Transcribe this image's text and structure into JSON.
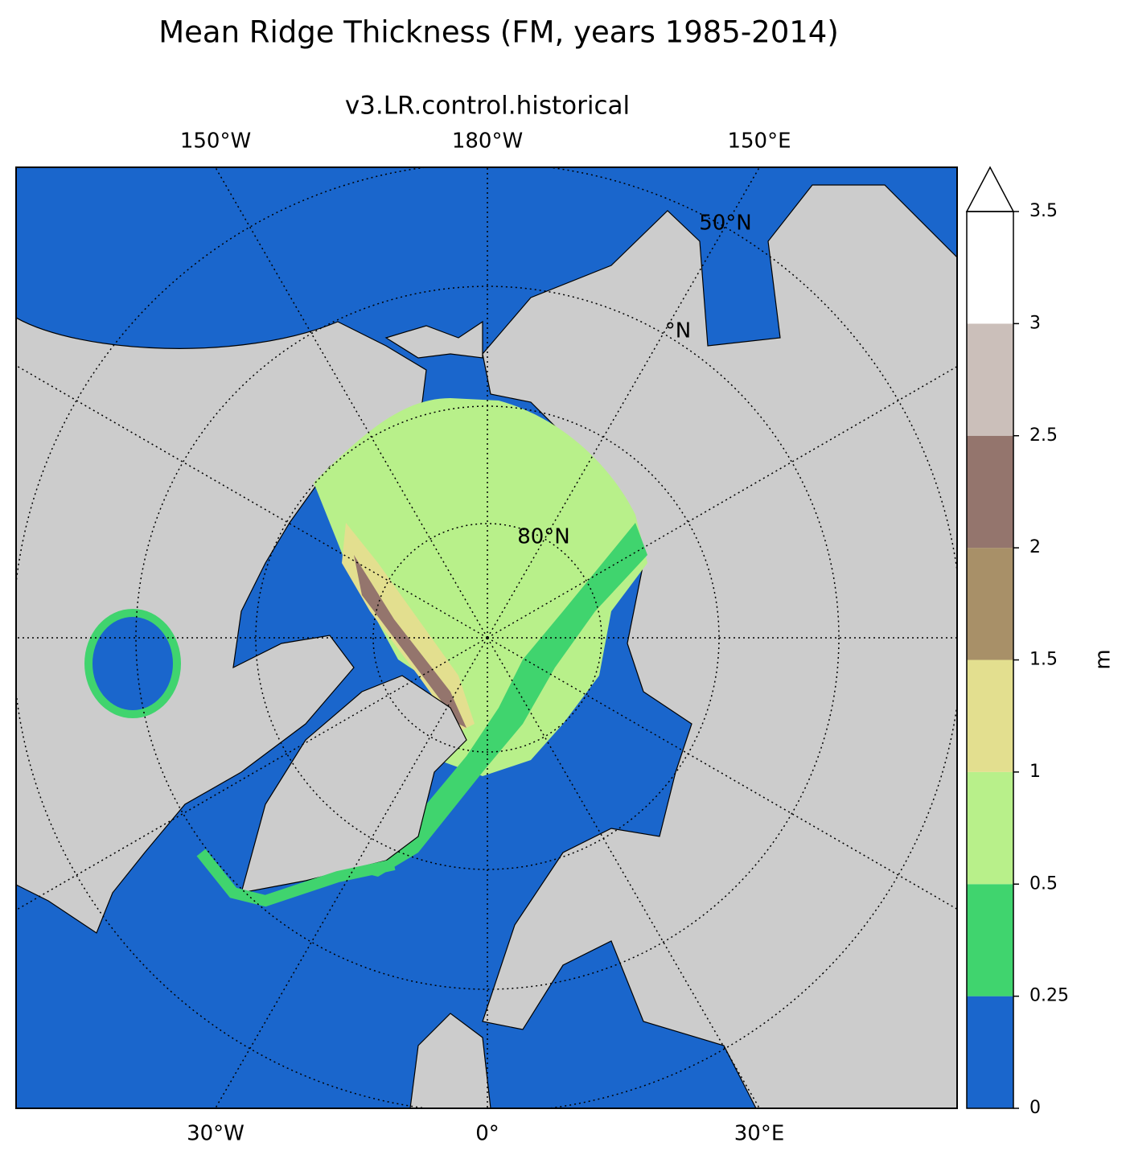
{
  "title": "Mean Ridge Thickness (FM, years 1985-2014)",
  "subtitle": "v3.LR.control.historical",
  "longitude_labels": {
    "top": [
      "150°W",
      "180°W",
      "150°E"
    ],
    "bottom": [
      "30°W",
      "0°",
      "30°E"
    ]
  },
  "latitude_labels": [
    "50°N",
    "°N",
    "80°N"
  ],
  "colorbar": {
    "label": "m",
    "ticks": [
      0,
      0.25,
      0.5,
      1,
      1.5,
      2,
      2.5,
      3,
      3.5
    ],
    "colors": [
      "#1a66cc",
      "#40d46e",
      "#b8f08a",
      "#e3df8f",
      "#a89068",
      "#94756d",
      "#cbbfba",
      "#ffffff"
    ],
    "extend_color": "#ffffff"
  }
}
